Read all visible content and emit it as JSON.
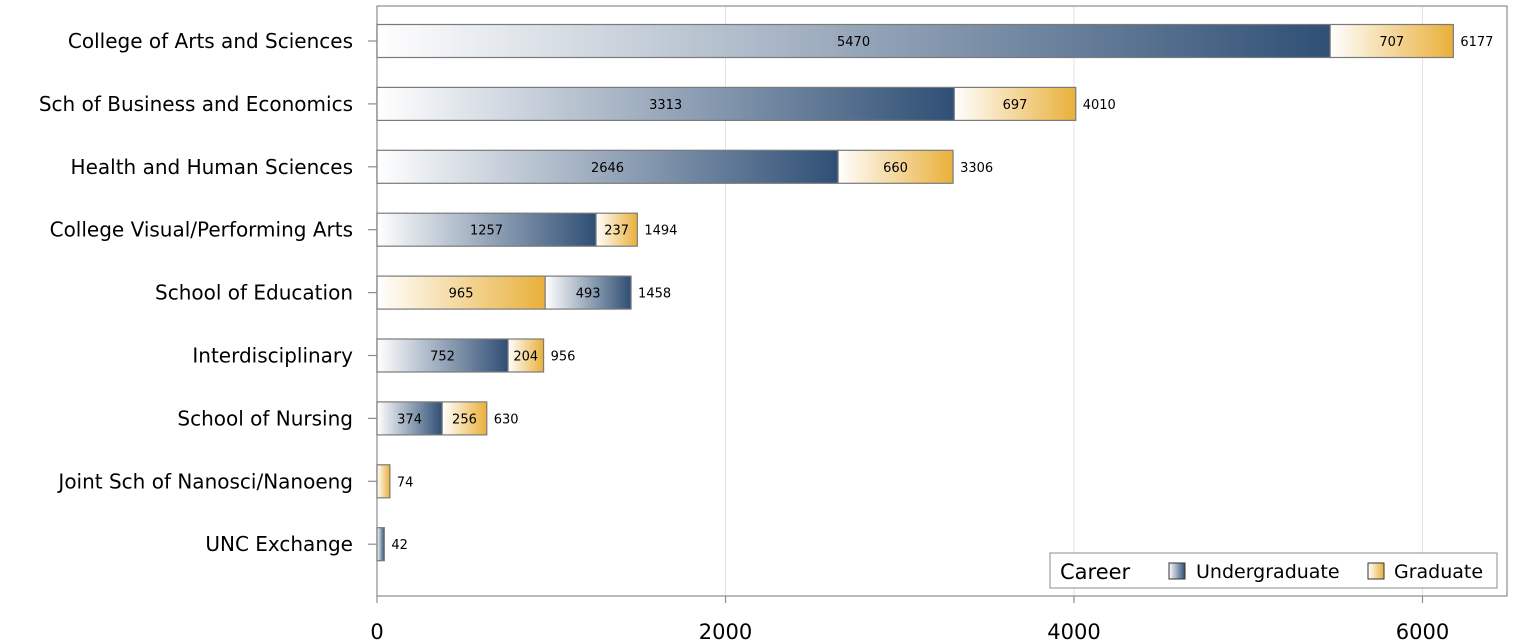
{
  "chart_data": {
    "type": "bar",
    "orientation": "horizontal",
    "stacked": true,
    "categories": [
      "College of Arts and Sciences",
      "Sch of Business and Economics",
      "Health and Human Sciences",
      "College Visual/Performing Arts",
      "School of Education",
      "Interdisciplinary",
      "School of Nursing",
      "Joint Sch of Nanosci/Nanoeng",
      "UNC Exchange"
    ],
    "segments": [
      [
        {
          "series": "Undergraduate",
          "value": 5470
        },
        {
          "series": "Graduate",
          "value": 707
        }
      ],
      [
        {
          "series": "Undergraduate",
          "value": 3313
        },
        {
          "series": "Graduate",
          "value": 697
        }
      ],
      [
        {
          "series": "Undergraduate",
          "value": 2646
        },
        {
          "series": "Graduate",
          "value": 660
        }
      ],
      [
        {
          "series": "Undergraduate",
          "value": 1257
        },
        {
          "series": "Graduate",
          "value": 237
        }
      ],
      [
        {
          "series": "Graduate",
          "value": 965
        },
        {
          "series": "Undergraduate",
          "value": 493
        }
      ],
      [
        {
          "series": "Undergraduate",
          "value": 752
        },
        {
          "series": "Graduate",
          "value": 204
        }
      ],
      [
        {
          "series": "Undergraduate",
          "value": 374
        },
        {
          "series": "Graduate",
          "value": 256
        }
      ],
      [
        {
          "series": "Graduate",
          "value": 74
        }
      ],
      [
        {
          "series": "Undergraduate",
          "value": 42
        }
      ]
    ],
    "segment_labels": [
      [
        "5470",
        "707"
      ],
      [
        "3313",
        "697"
      ],
      [
        "2646",
        "660"
      ],
      [
        "1257",
        "237"
      ],
      [
        "965",
        "493"
      ],
      [
        "752",
        "204"
      ],
      [
        "374",
        "256"
      ],
      [
        ""
      ],
      [
        ""
      ]
    ],
    "totals": [
      6177,
      4010,
      3306,
      1494,
      1458,
      956,
      630,
      74,
      42
    ],
    "series": [
      {
        "name": "Undergraduate",
        "color": "#2f4f75"
      },
      {
        "name": "Graduate",
        "color": "#e9b03a"
      }
    ],
    "xlim": [
      0,
      6500
    ],
    "xticks": [
      0,
      2000,
      4000,
      6000
    ],
    "grid": true,
    "legend": {
      "title": "Career",
      "position": "bottom-right"
    }
  }
}
